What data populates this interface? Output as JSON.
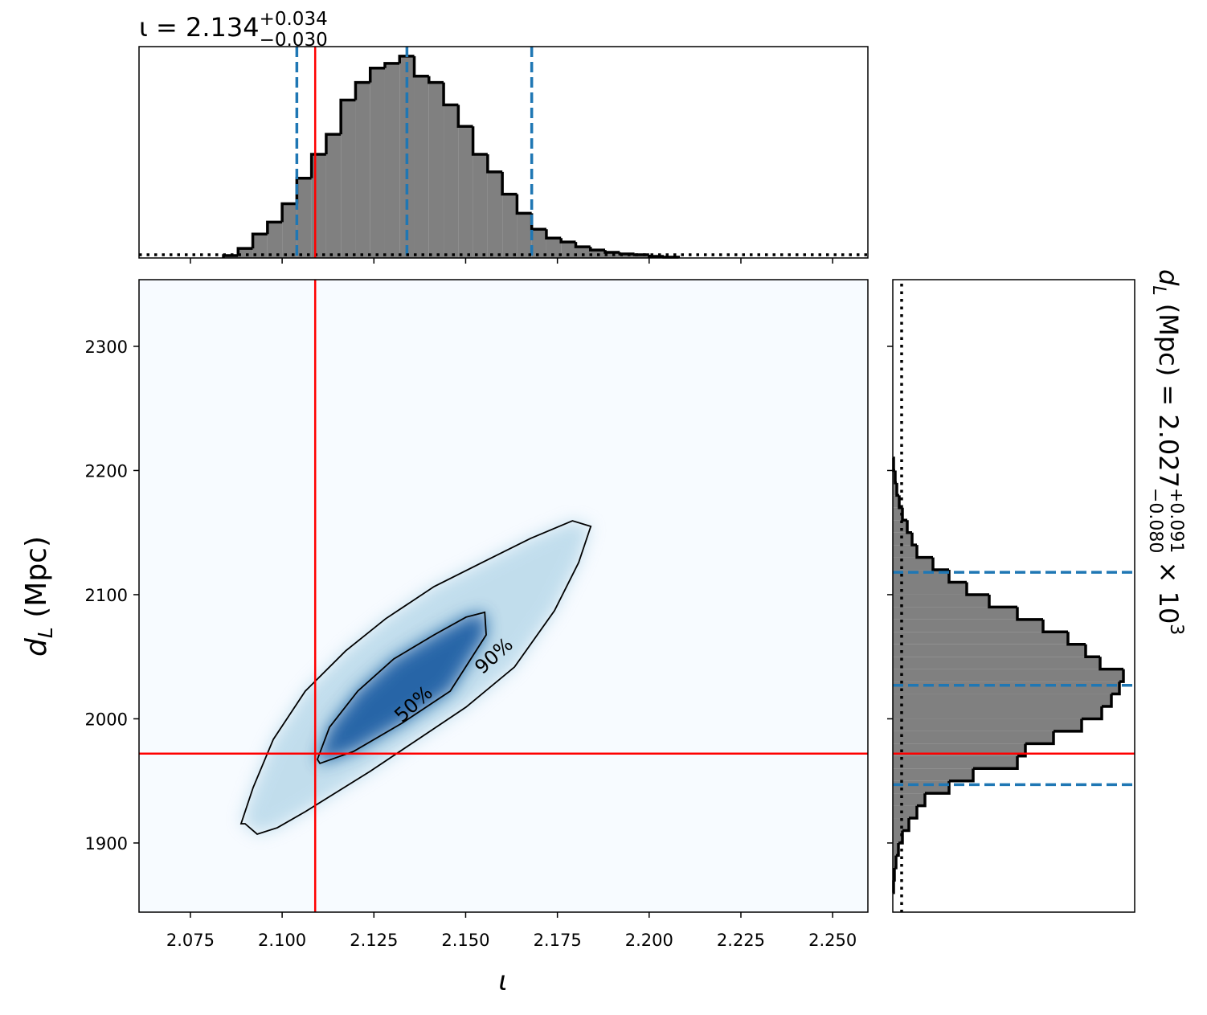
{
  "chart_data": [
    {
      "type": "histogram",
      "orientation": "vertical",
      "title": {
        "text": "ι = 2.134",
        "upper": "+0.034",
        "lower": "−0.030"
      },
      "bins": [
        2.084,
        2.088,
        2.092,
        2.096,
        2.1,
        2.104,
        2.108,
        2.112,
        2.116,
        2.12,
        2.124,
        2.128,
        2.132,
        2.136,
        2.14,
        2.144,
        2.148,
        2.152,
        2.156,
        2.16,
        2.164,
        2.168,
        2.172,
        2.176,
        2.18,
        2.184,
        2.188,
        2.192,
        2.196,
        2.2,
        2.204,
        2.208
      ],
      "values": [
        3,
        12,
        30,
        45,
        68,
        100,
        130,
        155,
        198,
        220,
        238,
        244,
        253,
        228,
        220,
        192,
        165,
        130,
        108,
        80,
        56,
        36,
        25,
        20,
        14,
        10,
        7,
        5,
        4,
        2,
        1
      ],
      "ylim": [
        0,
        265
      ],
      "color": "#808080",
      "edge_color": "#000000",
      "quantiles": [
        2.104,
        2.134,
        2.168
      ],
      "quantile_color": "#1f77b4",
      "prior": 4
    },
    {
      "type": "hist2d",
      "xlabel": "ι",
      "ylabel": {
        "symbol": "d",
        "subscript": "L",
        "unit": " (Mpc)"
      },
      "xlim": [
        2.061,
        2.2596
      ],
      "ylim": [
        1844.3,
        2353.7
      ],
      "xticks": [
        2.075,
        {
          "value": 2.1,
          "label": "2.100"
        },
        2.125,
        {
          "value": 2.15,
          "label": "2.150"
        },
        2.175,
        {
          "value": 2.2,
          "label": "2.200"
        },
        2.225,
        {
          "value": 2.25,
          "label": "2.250"
        }
      ],
      "yticks": [
        1900,
        2000,
        2100,
        2200,
        2300
      ],
      "background": "#f7fbff",
      "fill_colors": [
        "#9ecae1",
        "#08519c"
      ],
      "contours": [
        {
          "label": "90%",
          "x": [
            2.0899,
            2.0932,
            2.0987,
            2.1063,
            2.1151,
            2.1239,
            2.137,
            2.1501,
            2.1633,
            2.1742,
            2.1808,
            2.1841,
            2.1791,
            2.1677,
            2.1545,
            2.1414,
            2.1282,
            2.1173,
            2.1063,
            2.0976,
            2.0921,
            2.0888
          ],
          "y": [
            1915.5,
            1907.1,
            1912.3,
            1925.2,
            1941.4,
            1957.6,
            1983.5,
            2009.4,
            2041.7,
            2087.1,
            2125.9,
            2155.0,
            2159.5,
            2145.3,
            2125.9,
            2106.5,
            2080.6,
            2054.7,
            2022.3,
            1983.5,
            1944.7,
            1915.5
          ]
        },
        {
          "label": "50%",
          "x": [
            2.1103,
            2.1195,
            2.1326,
            2.1458,
            2.1556,
            2.1552,
            2.1501,
            2.1414,
            2.1304,
            2.1206,
            2.1129,
            2.1096
          ],
          "y": [
            1964.1,
            1973.8,
            1996.4,
            2022.3,
            2067.6,
            2085.8,
            2081.9,
            2067.6,
            2048.2,
            2022.3,
            1993.2,
            1967.3
          ]
        }
      ],
      "truth": {
        "x": 2.109,
        "y": 1972,
        "color": "#ff0000"
      }
    },
    {
      "type": "histogram",
      "orientation": "horizontal",
      "title": {
        "symbol": "d",
        "subscript": "L",
        "text": " (Mpc) = 2.027",
        "upper": "+0.091",
        "lower": "−0.080",
        "suffix": " × 10",
        "exponent": "3"
      },
      "bins": [
        1860,
        1870,
        1880,
        1890,
        1900,
        1910,
        1920,
        1930,
        1940,
        1950,
        1960,
        1970,
        1980,
        1990,
        2000,
        2010,
        2020,
        2030,
        2040,
        2050,
        2060,
        2070,
        2080,
        2090,
        2100,
        2110,
        2120,
        2130,
        2140,
        2150,
        2160,
        2170,
        2180,
        2190,
        2200,
        2210
      ],
      "values": [
        1,
        2,
        4,
        7,
        12,
        20,
        30,
        40,
        70,
        100,
        155,
        165,
        200,
        235,
        260,
        272,
        282,
        287,
        258,
        240,
        218,
        187,
        155,
        120,
        92,
        70,
        50,
        30,
        24,
        18,
        12,
        8,
        5,
        3,
        1
      ],
      "xlim": [
        0,
        301
      ],
      "color": "#808080",
      "edge_color": "#000000",
      "quantiles": [
        1947,
        2027,
        2118
      ],
      "quantile_color": "#1f77b4",
      "prior": 11
    }
  ]
}
